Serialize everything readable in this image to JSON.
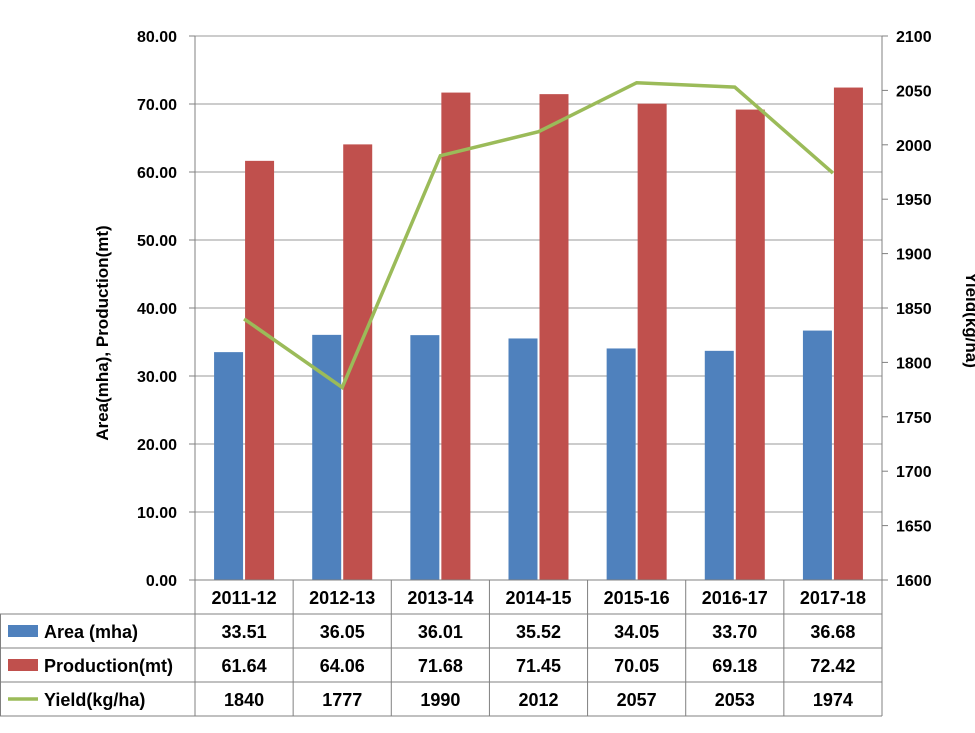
{
  "chart_data": {
    "type": "bar",
    "categories": [
      "2011-12",
      "2012-13",
      "2013-14",
      "2014-15",
      "2015-16",
      "2016-17",
      "2017-18"
    ],
    "series": [
      {
        "name": "Area (mha)",
        "type": "bar",
        "axis": "left",
        "color": "#4F81BD",
        "values": [
          33.51,
          36.05,
          36.01,
          35.52,
          34.05,
          33.7,
          36.68
        ],
        "display": [
          "33.51",
          "36.05",
          "36.01",
          "35.52",
          "34.05",
          "33.70",
          "36.68"
        ]
      },
      {
        "name": "Production(mt)",
        "type": "bar",
        "axis": "left",
        "color": "#C0504D",
        "values": [
          61.64,
          64.06,
          71.68,
          71.45,
          70.05,
          69.18,
          72.42
        ],
        "display": [
          "61.64",
          "64.06",
          "71.68",
          "71.45",
          "70.05",
          "69.18",
          "72.42"
        ]
      },
      {
        "name": "Yield(kg/ha)",
        "type": "line",
        "axis": "right",
        "color": "#9BBB59",
        "values": [
          1840,
          1777,
          1990,
          2012,
          2057,
          2053,
          1974
        ],
        "display": [
          "1840",
          "1777",
          "1990",
          "2012",
          "2057",
          "2053",
          "1974"
        ]
      }
    ],
    "ylabel": "Area(mha), Production(mt)",
    "y2label": "Yield(kg/ha)",
    "ylim": [
      0,
      80
    ],
    "y2lim": [
      1600,
      2100
    ],
    "yticks": [
      "0.00",
      "10.00",
      "20.00",
      "30.00",
      "40.00",
      "50.00",
      "60.00",
      "70.00",
      "80.00"
    ],
    "y2ticks": [
      "1600",
      "1650",
      "1700",
      "1750",
      "1800",
      "1850",
      "1900",
      "1950",
      "2000",
      "2050",
      "2100"
    ],
    "grid": "horizontal",
    "legend": "data-table"
  }
}
